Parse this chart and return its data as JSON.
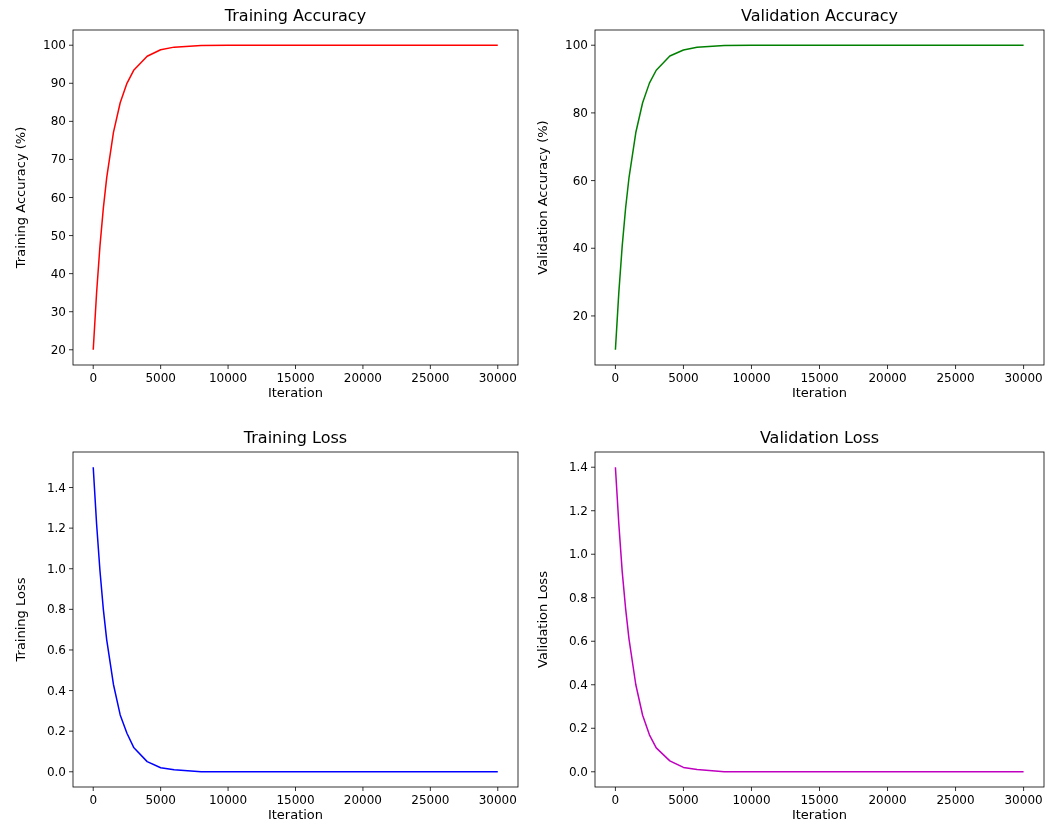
{
  "chart_data": [
    {
      "type": "line",
      "title": "Training Accuracy",
      "xlabel": "Iteration",
      "ylabel": "Training Accuracy (%)",
      "x": [
        0,
        250,
        500,
        750,
        1000,
        1500,
        2000,
        2500,
        3000,
        4000,
        5000,
        6000,
        8000,
        10000,
        15000,
        20000,
        25000,
        30000
      ],
      "series": [
        {
          "color": "#ff0000",
          "values": [
            20,
            35,
            47.3,
            57.2,
            65.2,
            77.1,
            84.9,
            90,
            93.4,
            97.1,
            98.8,
            99.5,
            99.9,
            100,
            100,
            100,
            100,
            100
          ]
        }
      ],
      "xlim": [
        -1500,
        31500
      ],
      "xticks": [
        0,
        5000,
        10000,
        15000,
        20000,
        25000,
        30000
      ],
      "ylim": [
        16,
        104
      ],
      "yticks": [
        20,
        30,
        40,
        50,
        60,
        70,
        80,
        90,
        100
      ]
    },
    {
      "type": "line",
      "title": "Validation Accuracy",
      "xlabel": "Iteration",
      "ylabel": "Validation Accuracy (%)",
      "x": [
        0,
        250,
        500,
        750,
        1000,
        1500,
        2000,
        2500,
        3000,
        4000,
        5000,
        6000,
        8000,
        10000,
        15000,
        20000,
        25000,
        30000
      ],
      "series": [
        {
          "color": "#008000",
          "values": [
            10,
            26.9,
            40.7,
            51.9,
            60.9,
            74.2,
            83,
            88.8,
            92.6,
            96.8,
            98.6,
            99.4,
            99.9,
            100,
            100,
            100,
            100,
            100
          ]
        }
      ],
      "xlim": [
        -1500,
        31500
      ],
      "xticks": [
        0,
        5000,
        10000,
        15000,
        20000,
        25000,
        30000
      ],
      "ylim": [
        5.5,
        104.5
      ],
      "yticks": [
        20,
        40,
        60,
        80,
        100
      ]
    },
    {
      "type": "line",
      "title": "Training Loss",
      "xlabel": "Iteration",
      "ylabel": "Training Loss",
      "x": [
        0,
        250,
        500,
        750,
        1000,
        1500,
        2000,
        2500,
        3000,
        4000,
        5000,
        6000,
        8000,
        10000,
        15000,
        20000,
        25000,
        30000
      ],
      "series": [
        {
          "color": "#0000ff",
          "values": [
            1.5,
            1.22,
            0.99,
            0.8,
            0.65,
            0.43,
            0.28,
            0.19,
            0.12,
            0.05,
            0.02,
            0.01,
            0,
            0,
            0,
            0,
            0,
            0
          ]
        }
      ],
      "xlim": [
        -1500,
        31500
      ],
      "xticks": [
        0,
        5000,
        10000,
        15000,
        20000,
        25000,
        30000
      ],
      "ylim": [
        -0.075,
        1.575
      ],
      "yticks": [
        {
          "value": 0,
          "label": "0.0"
        },
        {
          "value": 0.2,
          "label": "0.2"
        },
        {
          "value": 0.4,
          "label": "0.4"
        },
        {
          "value": 0.6,
          "label": "0.6"
        },
        {
          "value": 0.8,
          "label": "0.8"
        },
        {
          "value": 1,
          "label": "1.0"
        },
        {
          "value": 1.2,
          "label": "1.2"
        },
        {
          "value": 1.4,
          "label": "1.4"
        }
      ]
    },
    {
      "type": "line",
      "title": "Validation Loss",
      "xlabel": "Iteration",
      "ylabel": "Validation Loss",
      "x": [
        0,
        250,
        500,
        750,
        1000,
        1500,
        2000,
        2500,
        3000,
        4000,
        5000,
        6000,
        8000,
        10000,
        15000,
        20000,
        25000,
        30000
      ],
      "series": [
        {
          "color": "#bf00bf",
          "values": [
            1.4,
            1.14,
            0.92,
            0.75,
            0.61,
            0.4,
            0.26,
            0.17,
            0.11,
            0.05,
            0.02,
            0.01,
            0,
            0,
            0,
            0,
            0,
            0
          ]
        }
      ],
      "xlim": [
        -1500,
        31500
      ],
      "xticks": [
        0,
        5000,
        10000,
        15000,
        20000,
        25000,
        30000
      ],
      "ylim": [
        -0.07,
        1.47
      ],
      "yticks": [
        {
          "value": 0,
          "label": "0.0"
        },
        {
          "value": 0.2,
          "label": "0.2"
        },
        {
          "value": 0.4,
          "label": "0.4"
        },
        {
          "value": 0.6,
          "label": "0.6"
        },
        {
          "value": 0.8,
          "label": "0.8"
        },
        {
          "value": 1,
          "label": "1.0"
        },
        {
          "value": 1.2,
          "label": "1.2"
        },
        {
          "value": 1.4,
          "label": "1.4"
        }
      ]
    }
  ]
}
